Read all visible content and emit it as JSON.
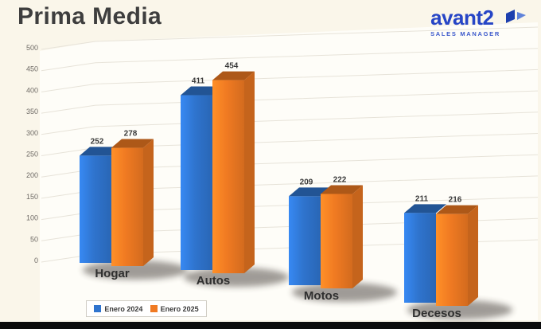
{
  "page": {
    "background_color": "#faf6ea",
    "footer_bar_color": "#0b0b0b"
  },
  "header": {
    "title": "Prima Media",
    "logo": {
      "brand": "avant2",
      "tagline": "SALES MANAGER",
      "brand_color": "#2645c6",
      "icon": "avant2-logo-icon"
    }
  },
  "chart_data": {
    "type": "bar",
    "variant": "3d-column",
    "title": "Prima Media",
    "categories": [
      "Hogar",
      "Autos",
      "Motos",
      "Decesos"
    ],
    "series": [
      {
        "name": "Enero 2024",
        "color": "#2f74ce",
        "values": [
          252,
          411,
          209,
          211
        ]
      },
      {
        "name": "Enero 2025",
        "color": "#f07a22",
        "values": [
          278,
          454,
          222,
          216
        ]
      }
    ],
    "ylim": [
      0,
      500
    ],
    "ytick_step": 50,
    "yticks": [
      0,
      50,
      100,
      150,
      200,
      250,
      300,
      350,
      400,
      450,
      500
    ],
    "grid": true,
    "value_labels_shown": true,
    "legend_position": "bottom-left",
    "gridline_color": "#e7e3d9",
    "tick_label_color": "#6f6b66",
    "value_label_color": "#3a3a3a",
    "category_label_color": "#2f2f2f"
  }
}
